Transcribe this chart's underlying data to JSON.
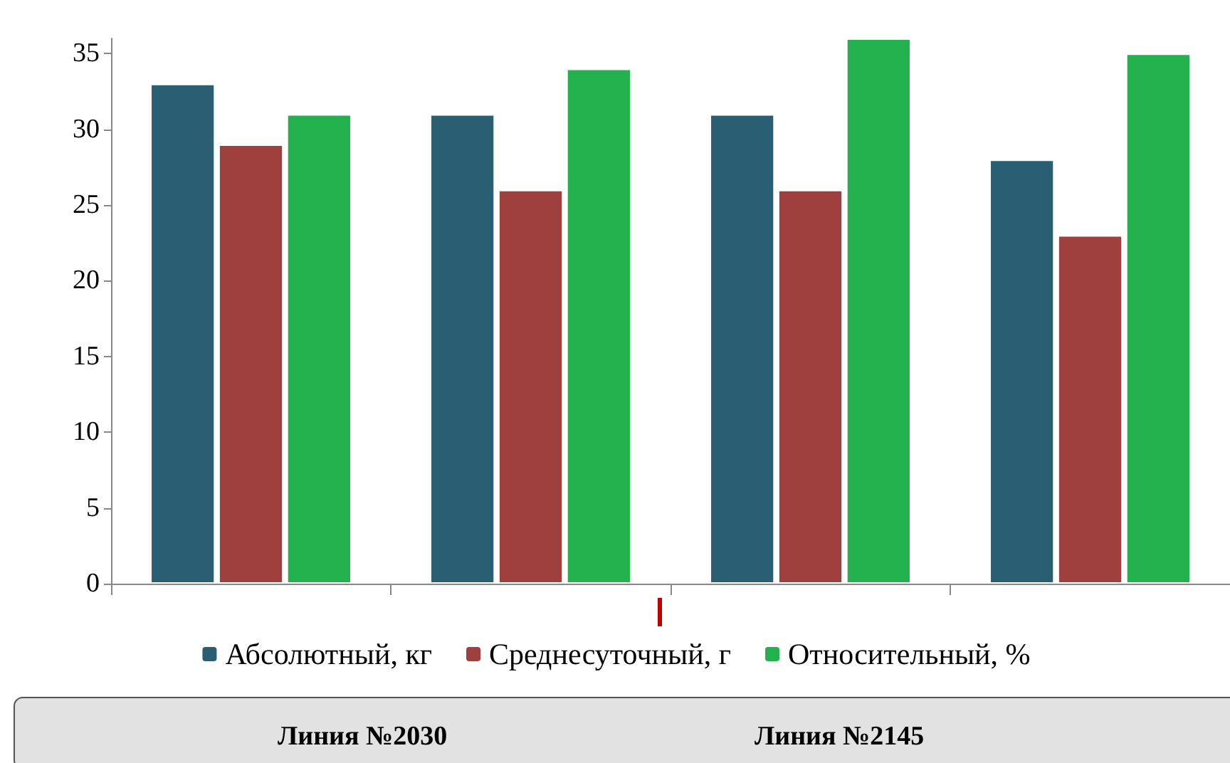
{
  "chart_data": {
    "type": "bar",
    "categories": [
      null,
      null,
      null,
      null
    ],
    "series": [
      {
        "name": "Абсолютный, кг",
        "color": "#2a5f73",
        "values": [
          33,
          31,
          31,
          28
        ]
      },
      {
        "name": "Среднесуточный, г",
        "color": "#a0403e",
        "values": [
          29,
          26,
          26,
          23
        ]
      },
      {
        "name": "Относительный, %",
        "color": "#22b14c",
        "values": [
          31,
          34,
          36,
          35
        ]
      }
    ],
    "ylim": [
      0,
      36
    ],
    "yticks": [
      0,
      5,
      10,
      15,
      20,
      25,
      30,
      35
    ],
    "grid": false,
    "legend": "bottom",
    "annotations": [
      "Линия №2030",
      "Линия №2145"
    ]
  }
}
